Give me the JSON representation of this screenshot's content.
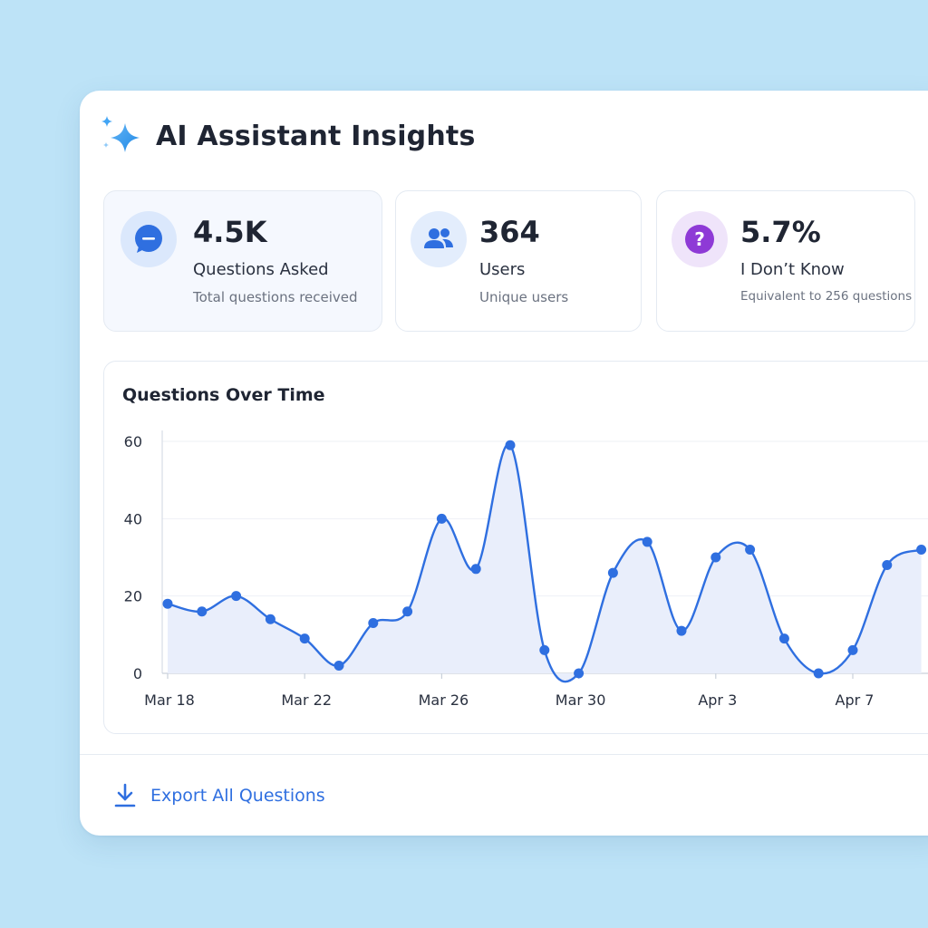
{
  "header": {
    "title": "AI Assistant Insights",
    "icon": "sparkle-icon"
  },
  "colors": {
    "accent": "#2f6fe0",
    "background": "#bde3f7",
    "purple": "#8e3ad6"
  },
  "stats": [
    {
      "value": "4.5K",
      "label": "Questions Asked",
      "sub": "Total questions received",
      "icon": "chat-bubble-icon"
    },
    {
      "value": "364",
      "label": "Users",
      "sub": "Unique users",
      "icon": "users-icon"
    },
    {
      "value": "5.7%",
      "label": "I Don’t Know",
      "sub": "Equivalent to 256 questions",
      "icon": "question-icon"
    }
  ],
  "chart": {
    "title": "Questions Over Time"
  },
  "chart_data": {
    "type": "area",
    "title": "Questions Over Time",
    "xlabel": "",
    "ylabel": "",
    "ylim": [
      0,
      60
    ],
    "yticks": [
      "0",
      "20",
      "40",
      "60"
    ],
    "xticks": [
      "Mar 18",
      "Mar 22",
      "Mar 26",
      "Mar 30",
      "Apr 3",
      "Apr 7"
    ],
    "grid": true,
    "x": [
      "Mar 18",
      "Mar 19",
      "Mar 20",
      "Mar 21",
      "Mar 22",
      "Mar 23",
      "Mar 24",
      "Mar 25",
      "Mar 26",
      "Mar 27",
      "Mar 28",
      "Mar 29",
      "Mar 30",
      "Mar 31",
      "Apr 1",
      "Apr 2",
      "Apr 3",
      "Apr 4",
      "Apr 5",
      "Apr 6",
      "Apr 7",
      "Apr 8",
      "Apr 9"
    ],
    "values": [
      18,
      16,
      20,
      14,
      9,
      2,
      13,
      16,
      40,
      27,
      59,
      6,
      0,
      26,
      34,
      11,
      30,
      32,
      9,
      0,
      6,
      28,
      32
    ]
  },
  "footer": {
    "export_label": "Export All Questions",
    "icon": "download-icon"
  }
}
